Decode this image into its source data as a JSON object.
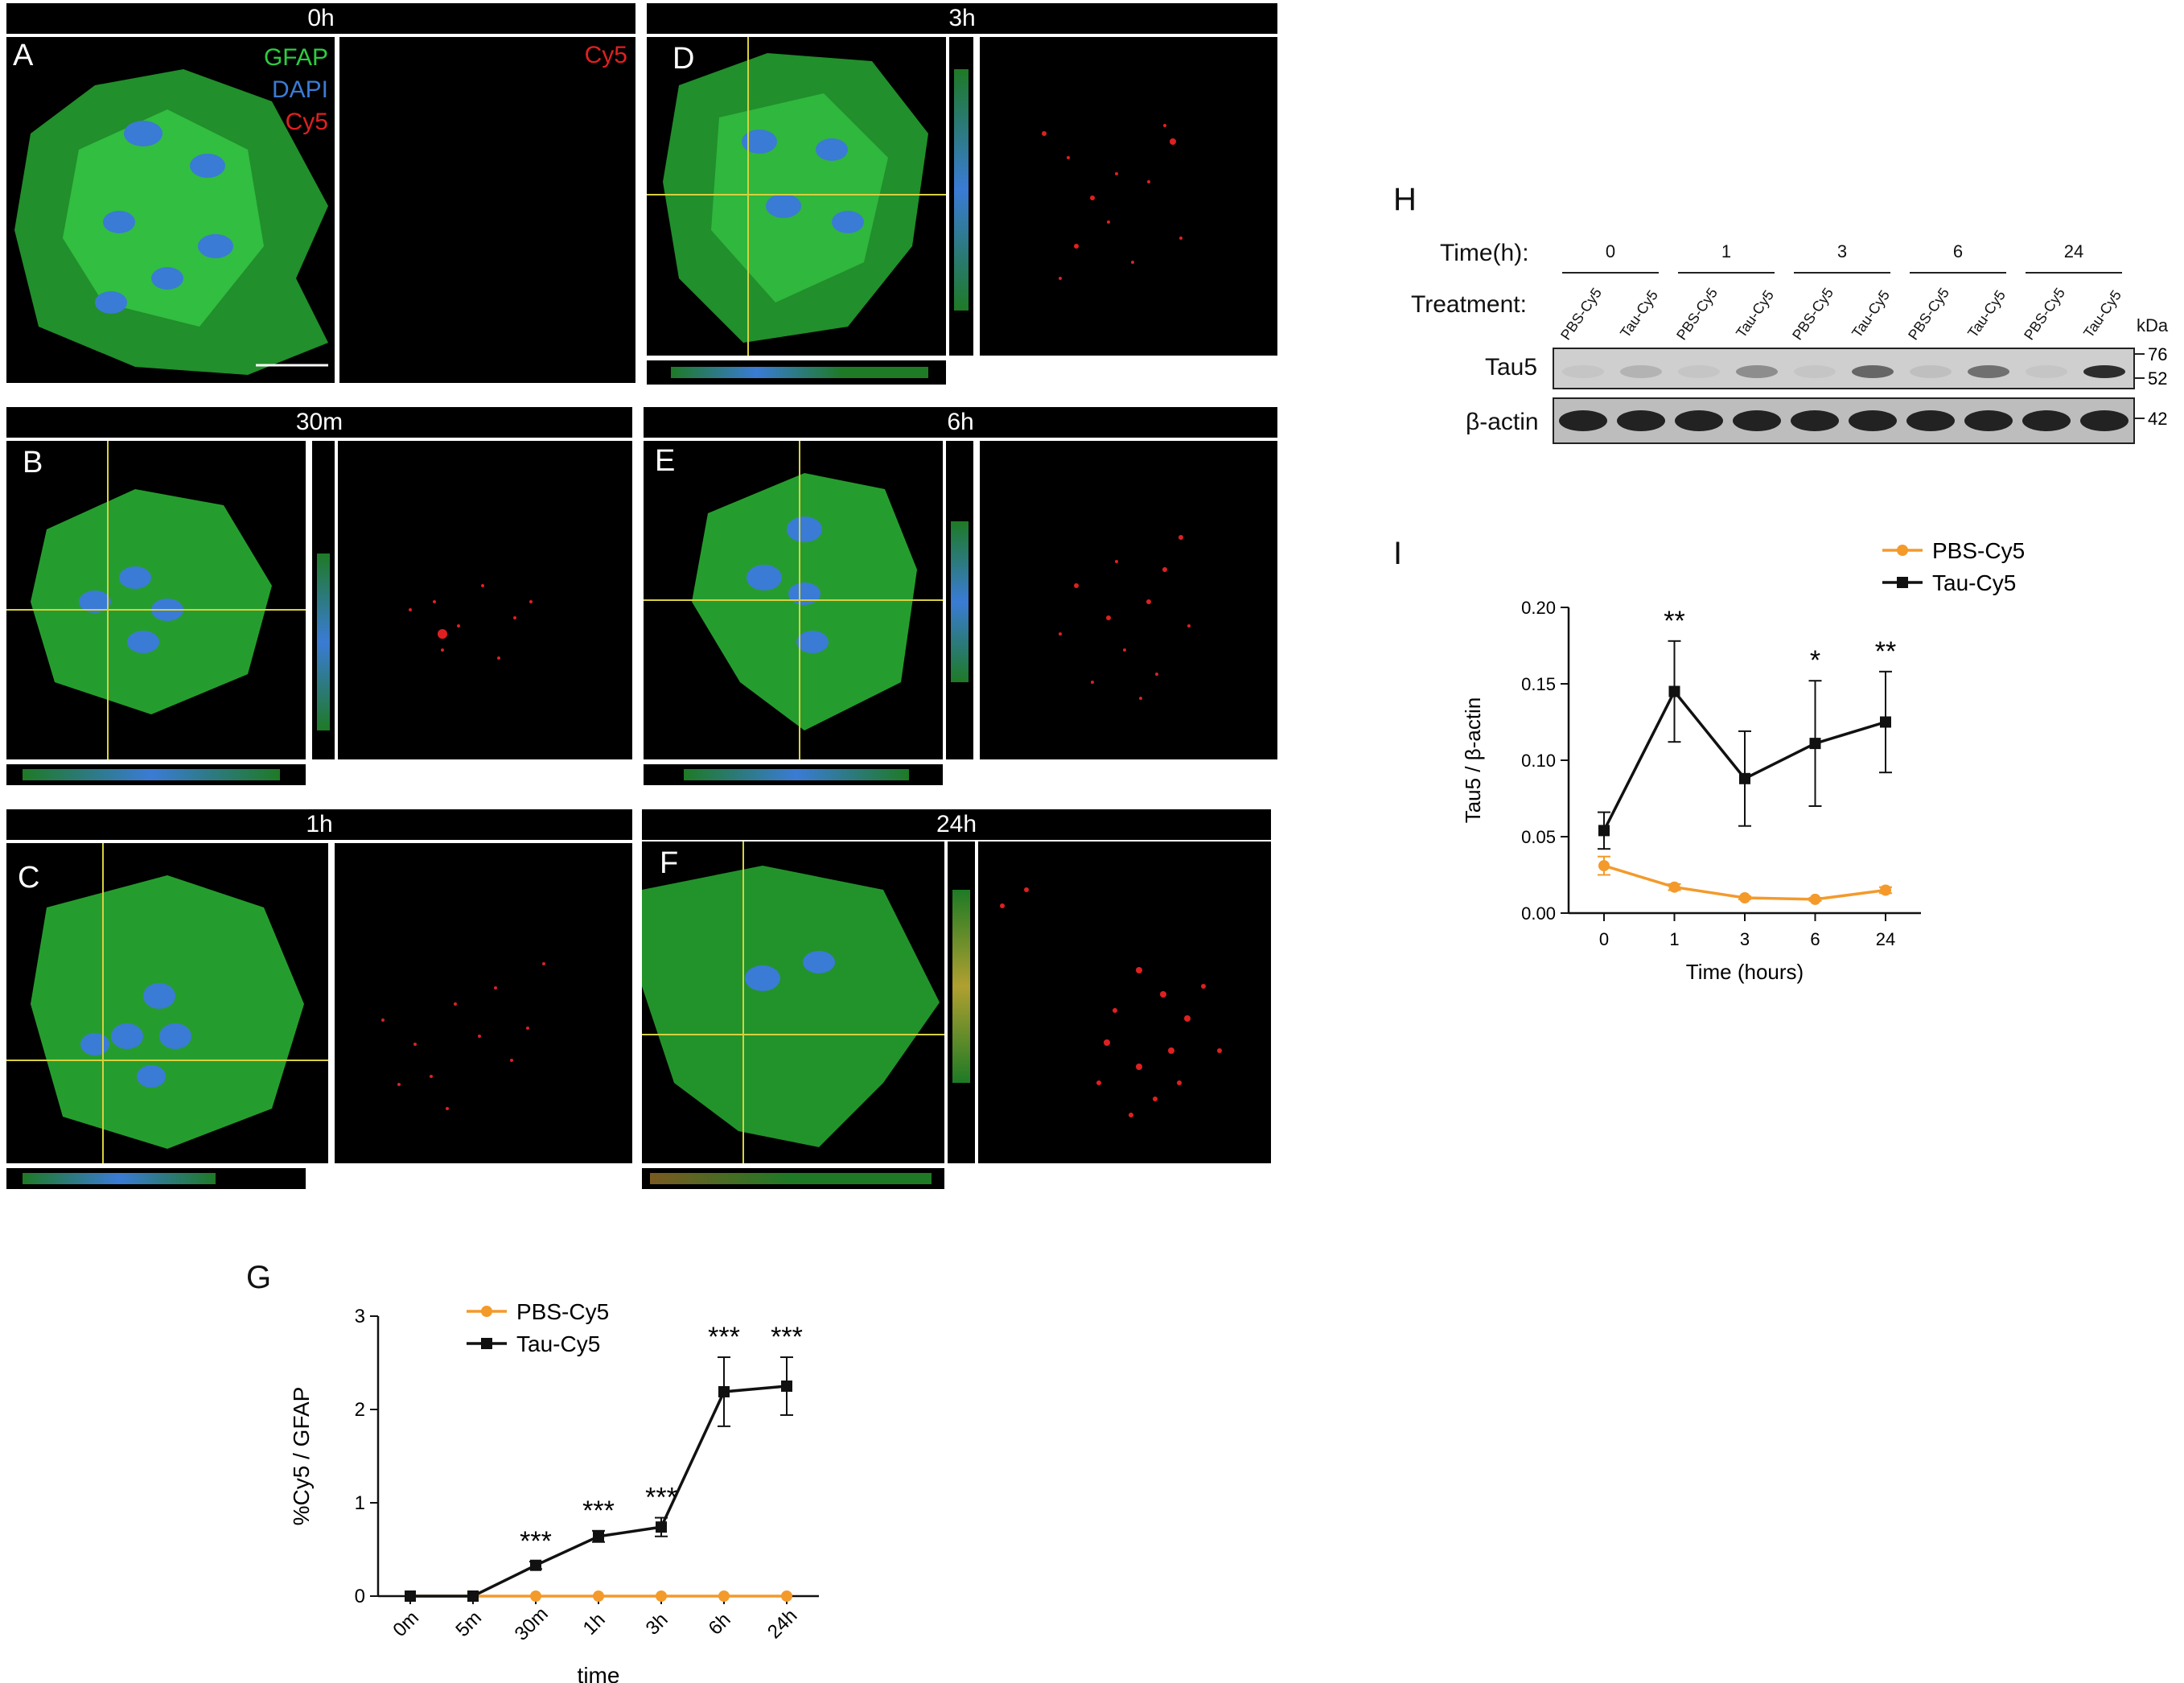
{
  "micro": {
    "panels": [
      {
        "letter": "A",
        "time": "0h"
      },
      {
        "letter": "B",
        "time": "30m"
      },
      {
        "letter": "C",
        "time": "1h"
      },
      {
        "letter": "D",
        "time": "3h"
      },
      {
        "letter": "E",
        "time": "6h"
      },
      {
        "letter": "F",
        "time": "24h"
      }
    ],
    "legend": {
      "gfap": "GFAP",
      "dapi": "DAPI",
      "cy5": "Cy5"
    },
    "cy5_label": "Cy5",
    "colors": {
      "gfap": "#2ecc40",
      "dapi": "#3a7bd5",
      "cy5": "#e02020"
    }
  },
  "blot": {
    "letter": "H",
    "time_label": "Time(h):",
    "treatment_label": "Treatment:",
    "times": [
      "0",
      "1",
      "3",
      "6",
      "24"
    ],
    "lanes": [
      "PBS-Cy5",
      "Tau-Cy5",
      "PBS-Cy5",
      "Tau-Cy5",
      "PBS-Cy5",
      "Tau-Cy5",
      "PBS-Cy5",
      "Tau-Cy5",
      "PBS-Cy5",
      "Tau-Cy5"
    ],
    "rows": [
      "Tau5",
      "β-actin"
    ],
    "kda_label": "kDa",
    "markers": [
      "76",
      "52",
      "42"
    ]
  },
  "chart_data": [
    {
      "id": "G",
      "letter": "G",
      "type": "line",
      "categories": [
        "0m",
        "5m",
        "30m",
        "1h",
        "3h",
        "6h",
        "24h"
      ],
      "series": [
        {
          "name": "PBS-Cy5",
          "values": [
            0,
            0,
            0,
            0,
            0,
            0,
            0
          ],
          "err": [
            0,
            0,
            0,
            0,
            0,
            0,
            0
          ],
          "color": "#f39a2b",
          "marker": "circle"
        },
        {
          "name": "Tau-Cy5",
          "values": [
            0,
            0,
            0.33,
            0.64,
            0.74,
            2.19,
            2.25
          ],
          "err": [
            0,
            0,
            0.04,
            0.06,
            0.1,
            0.37,
            0.31
          ],
          "color": "#111111",
          "marker": "square"
        }
      ],
      "significance": [
        "",
        "",
        "***",
        "***",
        "***",
        "***",
        "***"
      ],
      "xlabel": "time",
      "ylabel": "%Cy5 / GFAP",
      "ylim": [
        0,
        3
      ],
      "yticks": [
        0,
        1,
        2,
        3
      ]
    },
    {
      "id": "I",
      "letter": "I",
      "type": "line",
      "categories": [
        "0",
        "1",
        "3",
        "6",
        "24"
      ],
      "series": [
        {
          "name": "PBS-Cy5",
          "values": [
            0.031,
            0.017,
            0.01,
            0.009,
            0.015
          ],
          "err": [
            0.006,
            0.002,
            0.001,
            0.001,
            0.002
          ],
          "color": "#f39a2b",
          "marker": "circle"
        },
        {
          "name": "Tau-Cy5",
          "values": [
            0.054,
            0.145,
            0.088,
            0.111,
            0.125
          ],
          "err": [
            0.012,
            0.033,
            0.031,
            0.041,
            0.033
          ],
          "color": "#111111",
          "marker": "square"
        }
      ],
      "significance": [
        "",
        "**",
        "",
        "*",
        "**"
      ],
      "xlabel": "Time (hours)",
      "ylabel": "Tau5 / β-actin",
      "ylim": [
        0,
        0.2
      ],
      "yticks": [
        "0.00",
        "0.05",
        "0.10",
        "0.15",
        "0.20"
      ]
    }
  ]
}
